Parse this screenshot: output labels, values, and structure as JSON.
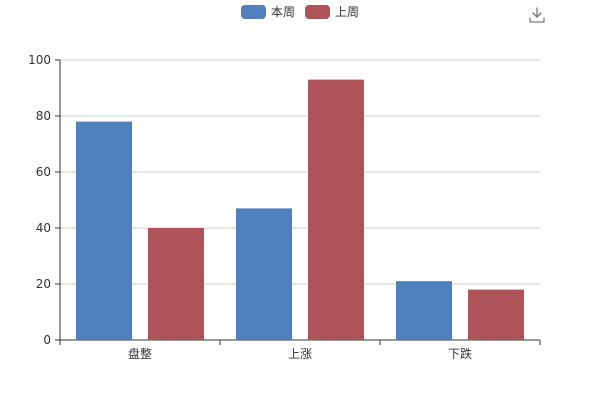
{
  "legend": {
    "items": [
      {
        "name": "本周",
        "color": "#4f7fbc"
      },
      {
        "name": "上周",
        "color": "#ae5357"
      }
    ]
  },
  "toolbar": {
    "download_icon": "download-icon"
  },
  "chart_data": {
    "type": "bar",
    "categories": [
      "盘整",
      "上涨",
      "下跌"
    ],
    "series": [
      {
        "name": "本周",
        "values": [
          78,
          47,
          21
        ],
        "color": "#4f7fbc"
      },
      {
        "name": "上周",
        "values": [
          40,
          93,
          18
        ],
        "color": "#ae5357"
      }
    ],
    "title": "",
    "xlabel": "",
    "ylabel": "",
    "ylim": [
      0,
      100
    ],
    "yticks": [
      0,
      20,
      40,
      60,
      80,
      100
    ],
    "grid": true,
    "legend_position": "top-center"
  }
}
